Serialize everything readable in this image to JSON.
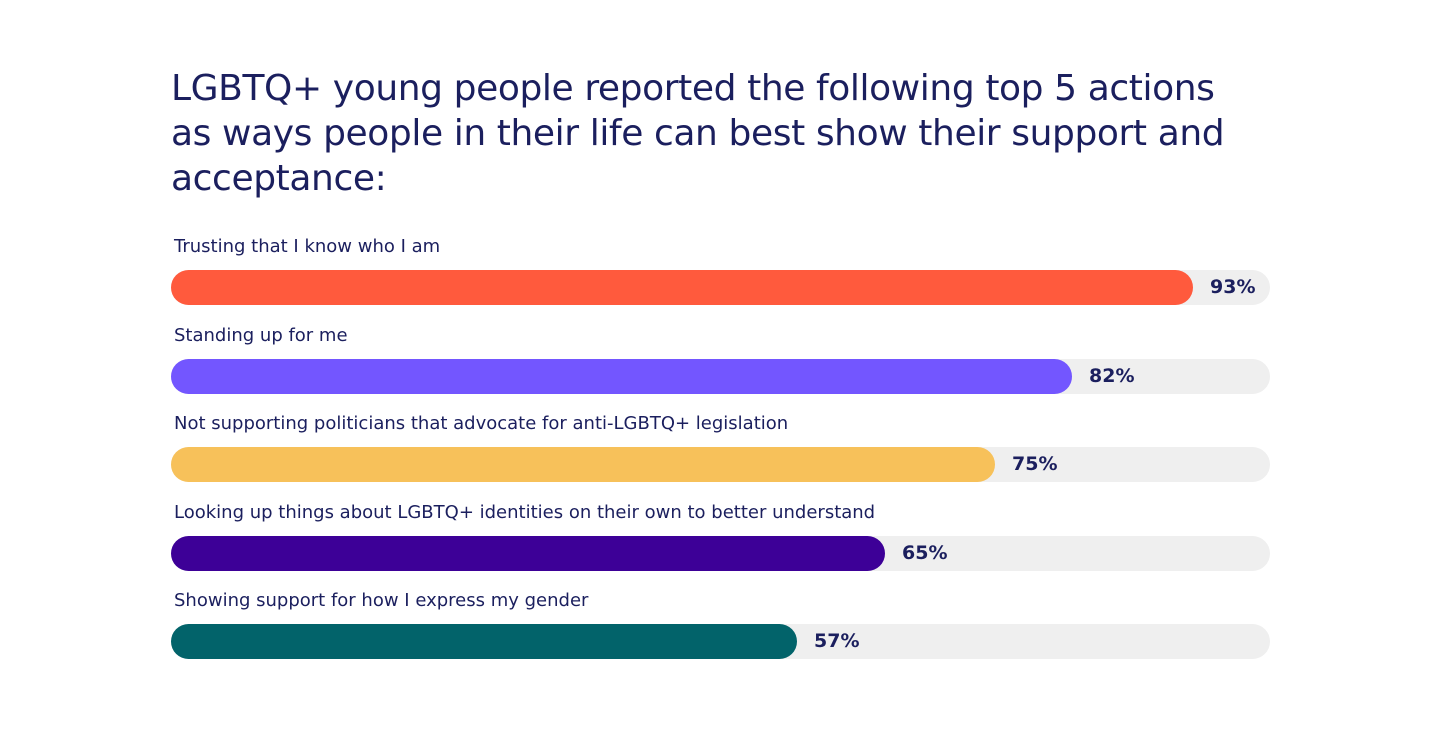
{
  "chart_data": {
    "type": "bar",
    "orientation": "horizontal",
    "title": "LGBTQ+ young people reported the following top 5 actions as ways people in their life can best show their support and acceptance:",
    "categories": [
      "Trusting that I know who I am",
      "Standing up for me",
      "Not supporting politicians that advocate for anti-LGBTQ+ legislation",
      "Looking up things about LGBTQ+ identities on their own to better understand",
      "Showing support for how I express my gender"
    ],
    "values": [
      93,
      82,
      75,
      65,
      57
    ],
    "value_labels": [
      "93%",
      "82%",
      "75%",
      "65%",
      "57%"
    ],
    "xlim": [
      0,
      100
    ],
    "colors": [
      "#ff5a3d",
      "#7356ff",
      "#f7c15a",
      "#3d0097",
      "#02636a"
    ],
    "track_color": "#efefef",
    "grid": false,
    "legend": "none"
  }
}
